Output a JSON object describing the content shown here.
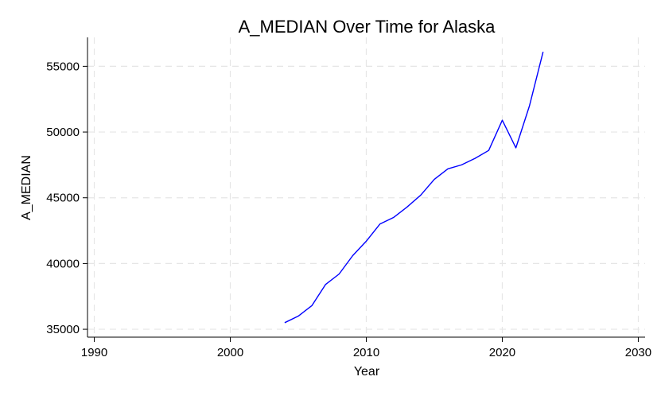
{
  "chart_data": {
    "type": "line",
    "title": "A_MEDIAN Over Time for Alaska",
    "xlabel": "Year",
    "ylabel": "A_MEDIAN",
    "xlim": [
      1989.5,
      2030.5
    ],
    "ylim": [
      34400,
      57200
    ],
    "x_ticks": [
      1990,
      2000,
      2010,
      2020,
      2030
    ],
    "y_ticks": [
      35000,
      40000,
      45000,
      50000,
      55000
    ],
    "grid": true,
    "line_color": "#0000ff",
    "series": [
      {
        "x": [
          2004,
          2005,
          2006,
          2007,
          2008,
          2009,
          2010,
          2011,
          2012,
          2013,
          2014,
          2015,
          2016,
          2017,
          2018,
          2019,
          2020,
          2021,
          2022,
          2023
        ],
        "values": [
          35500,
          36000,
          36800,
          38400,
          39200,
          40600,
          41700,
          43000,
          43500,
          44300,
          45200,
          46400,
          47200,
          47500,
          48000,
          48600,
          50900,
          48800,
          52000,
          56100
        ]
      }
    ]
  }
}
